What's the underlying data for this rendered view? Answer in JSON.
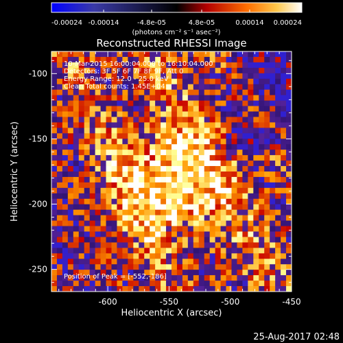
{
  "colorbar": {
    "ticks": [
      "-0.00024",
      "-0.00014",
      "-4.8e-05",
      "4.8e-05",
      "0.00014",
      "0.00024"
    ],
    "unit_label": "(photons cm⁻² s⁻¹ asec⁻²)",
    "min": -0.00024,
    "max": 0.00024
  },
  "footer_timestamp": "25-Aug-2017 02:48",
  "chart_data": {
    "type": "heatmap",
    "title": "Reconstructed RHESSI Image",
    "xlabel": "Heliocentric X (arcsec)",
    "ylabel": "Heliocentric Y (arcsec)",
    "xlim": [
      -646,
      -450
    ],
    "ylim": [
      -267,
      -83
    ],
    "x_ticks": [
      "-600",
      "-550",
      "-500",
      "-450"
    ],
    "y_ticks": [
      "-100",
      "-150",
      "-200",
      "-250"
    ],
    "annotations": [
      "10-Mar-2015 16:00:04.000 to 16:10:04.000",
      "Detectors: 3F 5F 6F 7F 8F 9F, Att 0",
      "Energy Range: 12.0 - 25.0 keV",
      "Clean     Total counts: 1.45E+04"
    ],
    "peak_label": "Position of Peak = [-552,-186]",
    "peak": {
      "x": -552,
      "y": -186
    },
    "colormap": [
      "#0000ff",
      "#000000",
      "#c80000",
      "#ff9600",
      "#ffff96",
      "#ffffff"
    ]
  }
}
